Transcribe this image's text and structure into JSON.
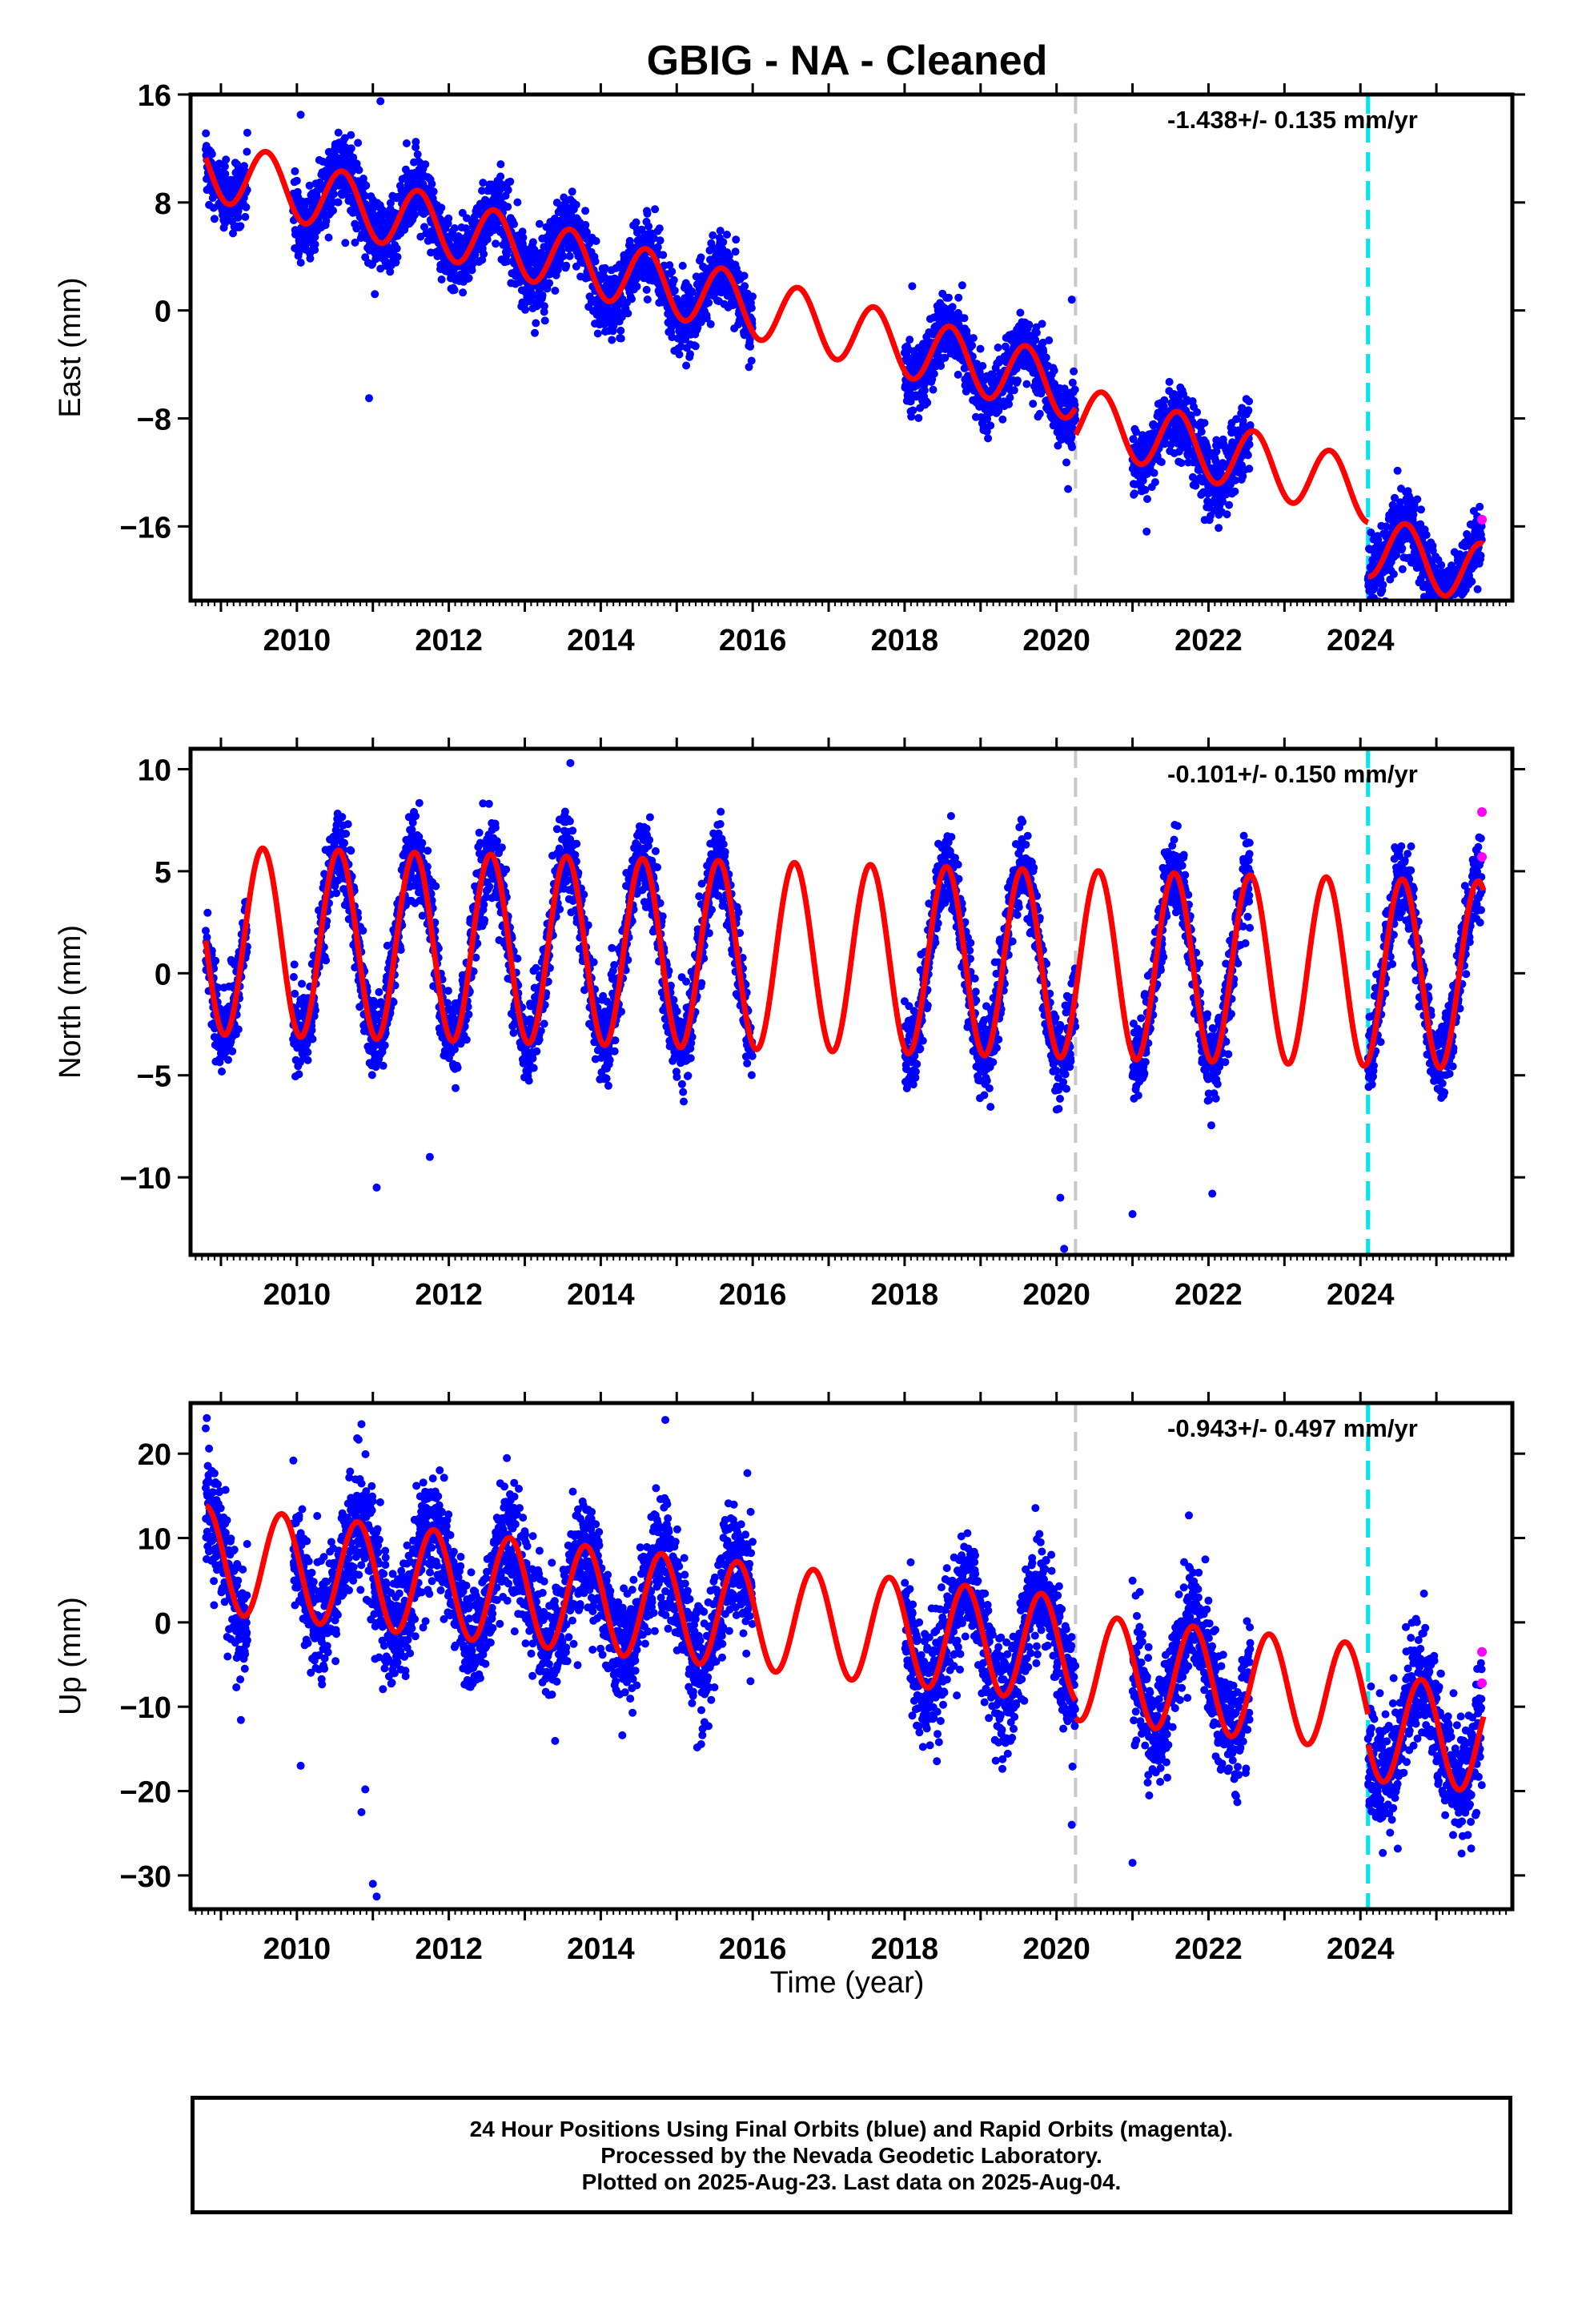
{
  "title": "GBIG  - NA - Cleaned",
  "xlabel": "Time (year)",
  "footer": {
    "line1": "24 Hour Positions Using Final Orbits (blue) and Rapid Orbits (magenta).",
    "line2": "Processed by the Nevada Geodetic Laboratory.",
    "line3": "Plotted on 2025-Aug-23. Last data on 2025-Aug-04."
  },
  "colors": {
    "final_orbits": "#0000ff",
    "rapid_orbits": "#ff00ff",
    "model_fit": "#ff0000",
    "antenna_change": "#c8c8c8",
    "equipment_change": "#00e5ee"
  },
  "chart_data": [
    {
      "type": "scatter",
      "component": "East",
      "ylabel": "East (mm)",
      "rate_label": "-1.438+/- 0.135 mm/yr",
      "xlim": [
        2008.6,
        2026.0
      ],
      "ylim": [
        -21.5,
        16
      ],
      "yticks": [
        16,
        8,
        0,
        -8,
        -16
      ],
      "xticks": [
        2010,
        2012,
        2014,
        2016,
        2018,
        2020,
        2022,
        2024
      ],
      "trend": {
        "value_at_2008_8": 10.6,
        "rate": -1.438
      },
      "annual_amplitude": 2.3,
      "phase_peak": 0.6,
      "offsets": [
        {
          "year": 2020.25,
          "step": -2.0
        },
        {
          "year": 2024.1,
          "step": -4.0
        }
      ],
      "reference_lines": [
        {
          "year": 2020.25,
          "kind": "antenna_change"
        },
        {
          "year": 2024.1,
          "kind": "equipment_change"
        }
      ],
      "data_segments": [
        [
          2008.8,
          2009.35
        ],
        [
          2009.95,
          2016.0
        ],
        [
          2018.0,
          2020.25
        ],
        [
          2021.0,
          2022.55
        ],
        [
          2024.1,
          2025.6
        ]
      ],
      "noise": 1.3,
      "outliers": [
        [
          2010.95,
          -6.5
        ],
        [
          2010.05,
          14.5
        ],
        [
          2011.1,
          15.5
        ],
        [
          2018.1,
          1.8
        ],
        [
          2020.2,
          0.8
        ]
      ],
      "rapid_points": [
        [
          2025.6,
          -15.5
        ]
      ]
    },
    {
      "type": "scatter",
      "component": "North",
      "ylabel": "North (mm)",
      "rate_label": "-0.101+/- 0.150 mm/yr",
      "xlim": [
        2008.6,
        2026.0
      ],
      "ylim": [
        -13.8,
        11
      ],
      "yticks": [
        10,
        5,
        0,
        -5,
        -10
      ],
      "xticks": [
        2010,
        2012,
        2014,
        2016,
        2018,
        2020,
        2022,
        2024
      ],
      "trend": {
        "value_at_2008_8": 1.6,
        "rate": -0.101
      },
      "annual_amplitude": 4.6,
      "phase_peak": 0.55,
      "offsets": [],
      "reference_lines": [
        {
          "year": 2020.25,
          "kind": "antenna_change"
        },
        {
          "year": 2024.1,
          "kind": "equipment_change"
        }
      ],
      "data_segments": [
        [
          2008.8,
          2009.35
        ],
        [
          2009.95,
          2016.0
        ],
        [
          2018.0,
          2020.25
        ],
        [
          2021.0,
          2022.55
        ],
        [
          2024.1,
          2025.6
        ]
      ],
      "noise": 1.0,
      "outliers": [
        [
          2011.05,
          -10.5
        ],
        [
          2011.75,
          -9.0
        ],
        [
          2020.1,
          -13.5
        ],
        [
          2020.05,
          -11.0
        ],
        [
          2021.0,
          -11.8
        ],
        [
          2022.05,
          -10.8
        ],
        [
          2013.6,
          10.3
        ]
      ],
      "rapid_points": [
        [
          2025.6,
          7.9
        ],
        [
          2025.6,
          5.7
        ]
      ]
    },
    {
      "type": "scatter",
      "component": "Up",
      "ylabel": "Up (mm)",
      "rate_label": "-0.943+/- 0.497 mm/yr",
      "xlim": [
        2008.6,
        2026.0
      ],
      "ylim": [
        -34,
        26
      ],
      "yticks": [
        20,
        10,
        0,
        -10,
        -20,
        -30
      ],
      "xticks": [
        2010,
        2012,
        2014,
        2016,
        2018,
        2020,
        2022,
        2024
      ],
      "trend": {
        "value_at_2008_8": 7.5,
        "rate": -0.943
      },
      "annual_amplitude": 6.3,
      "phase_peak": 0.8,
      "offsets": [
        {
          "year": 2020.25,
          "step": -2.0
        },
        {
          "year": 2024.1,
          "step": -3.5
        }
      ],
      "reference_lines": [
        {
          "year": 2020.25,
          "kind": "antenna_change"
        },
        {
          "year": 2024.1,
          "kind": "equipment_change"
        }
      ],
      "data_segments": [
        [
          2008.8,
          2009.35
        ],
        [
          2009.95,
          2016.0
        ],
        [
          2018.0,
          2020.25
        ],
        [
          2021.0,
          2022.55
        ],
        [
          2024.1,
          2025.6
        ]
      ],
      "noise": 3.5,
      "outliers": [
        [
          2011.05,
          -32.5
        ],
        [
          2011.0,
          -31.0
        ],
        [
          2010.85,
          -22.5
        ],
        [
          2010.9,
          -19.8
        ],
        [
          2010.05,
          -17.0
        ],
        [
          2021.0,
          -28.5
        ],
        [
          2020.2,
          -24.0
        ],
        [
          2014.85,
          24.0
        ],
        [
          2010.85,
          23.5
        ],
        [
          2008.8,
          23.0
        ],
        [
          2024.15,
          -21.0
        ]
      ],
      "rapid_points": [
        [
          2025.6,
          -3.5
        ],
        [
          2025.6,
          -7.2
        ]
      ]
    }
  ]
}
